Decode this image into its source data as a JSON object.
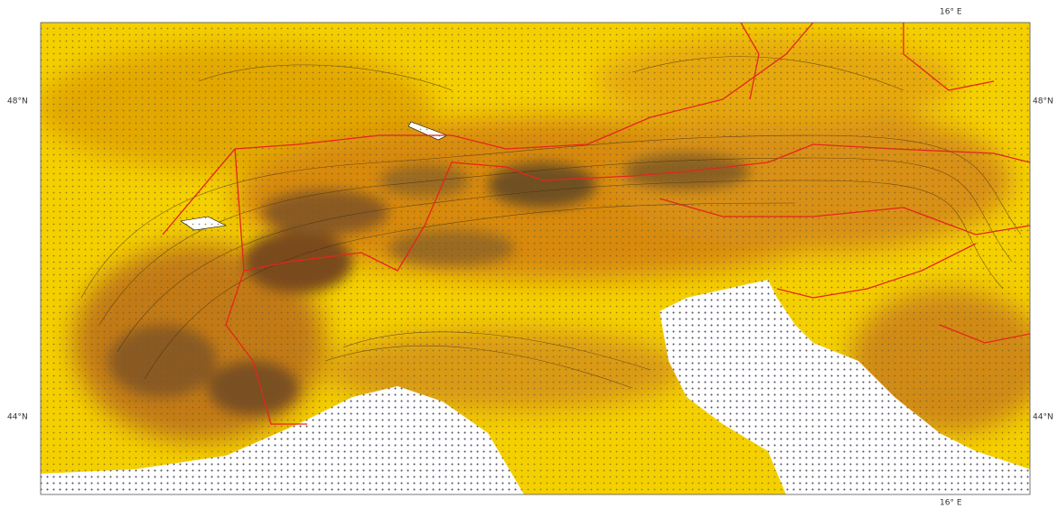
{
  "left_labels": [
    "48°N",
    "44°N"
  ],
  "right_labels": [
    "48°N",
    "44°N"
  ],
  "top_label": "16° E",
  "bottom_label": "16° E"
}
